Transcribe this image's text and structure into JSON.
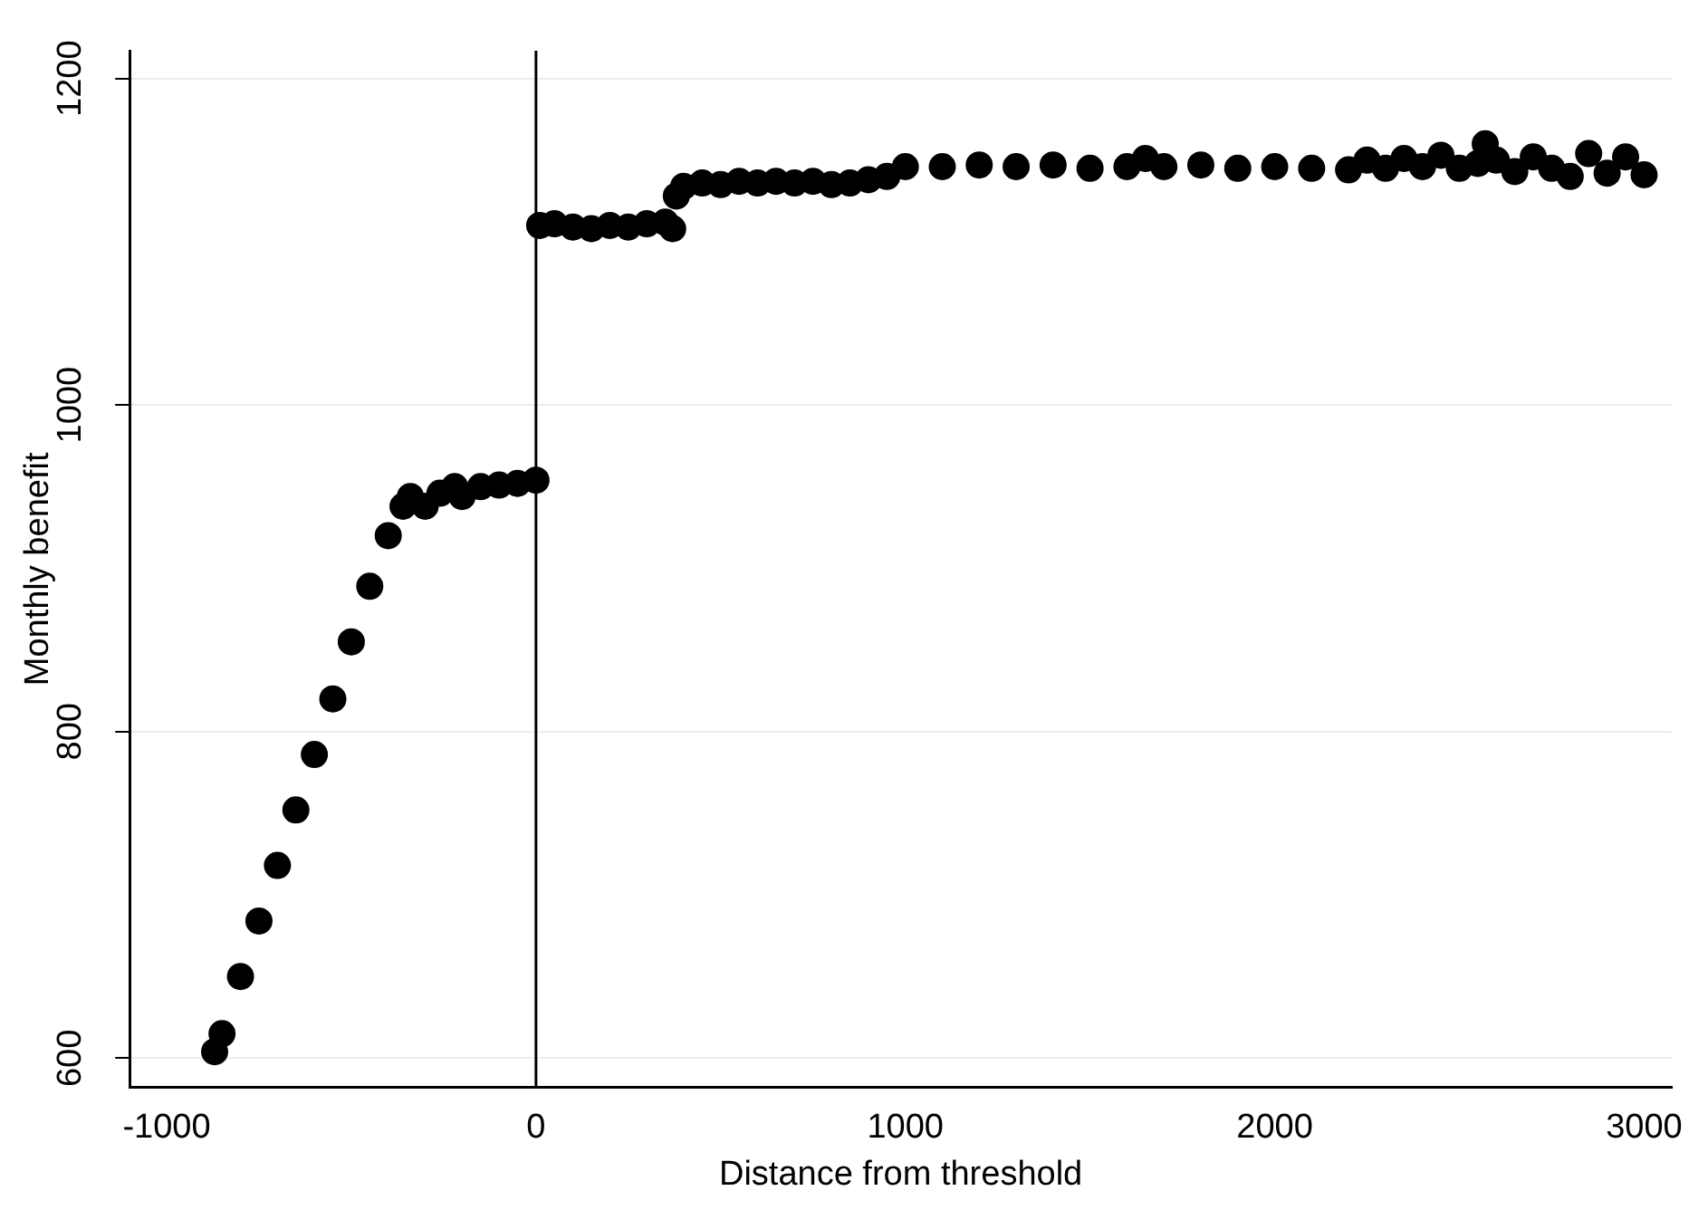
{
  "chart_data": {
    "type": "scatter",
    "xlabel": "Distance from threshold",
    "ylabel": "Monthly benefit",
    "x": [
      -870,
      -850,
      -800,
      -750,
      -700,
      -650,
      -600,
      -550,
      -500,
      -450,
      -400,
      -360,
      -340,
      -300,
      -260,
      -220,
      -200,
      -150,
      -100,
      -50,
      0,
      10,
      50,
      100,
      150,
      200,
      250,
      300,
      350,
      370,
      380,
      400,
      450,
      500,
      550,
      600,
      650,
      700,
      750,
      800,
      850,
      900,
      950,
      1000,
      1100,
      1200,
      1300,
      1400,
      1500,
      1600,
      1650,
      1700,
      1800,
      1900,
      2000,
      2100,
      2200,
      2250,
      2300,
      2350,
      2400,
      2450,
      2500,
      2550,
      2570,
      2600,
      2650,
      2700,
      2750,
      2800,
      2850,
      2900,
      2950,
      3000
    ],
    "series": [
      {
        "color": "#000000",
        "values": [
          604,
          615,
          650,
          684,
          718,
          752,
          786,
          820,
          855,
          889,
          920,
          938,
          944,
          938,
          946,
          950,
          944,
          950,
          951,
          952,
          954,
          1110,
          1111,
          1109,
          1108,
          1110,
          1109,
          1111,
          1112,
          1108,
          1128,
          1134,
          1136,
          1135,
          1137,
          1136,
          1137,
          1136,
          1137,
          1135,
          1136,
          1138,
          1140,
          1146,
          1146,
          1147,
          1146,
          1147,
          1145,
          1146,
          1151,
          1146,
          1147,
          1145,
          1146,
          1145,
          1144,
          1150,
          1145,
          1151,
          1146,
          1153,
          1145,
          1148,
          1160,
          1150,
          1143,
          1152,
          1145,
          1140,
          1154,
          1142,
          1152,
          1141
        ]
      }
    ],
    "xlim": [
      -1100,
      3075
    ],
    "xticks": [
      -1000,
      0,
      1000,
      2000,
      3000
    ],
    "ylim": [
      582,
      1217
    ],
    "yticks": [
      600,
      800,
      1000,
      1200
    ],
    "ref_lines": [
      {
        "axis": "x",
        "value": 0,
        "color": "#000000"
      }
    ],
    "grid": "y",
    "legend": false,
    "marker": "circle"
  }
}
